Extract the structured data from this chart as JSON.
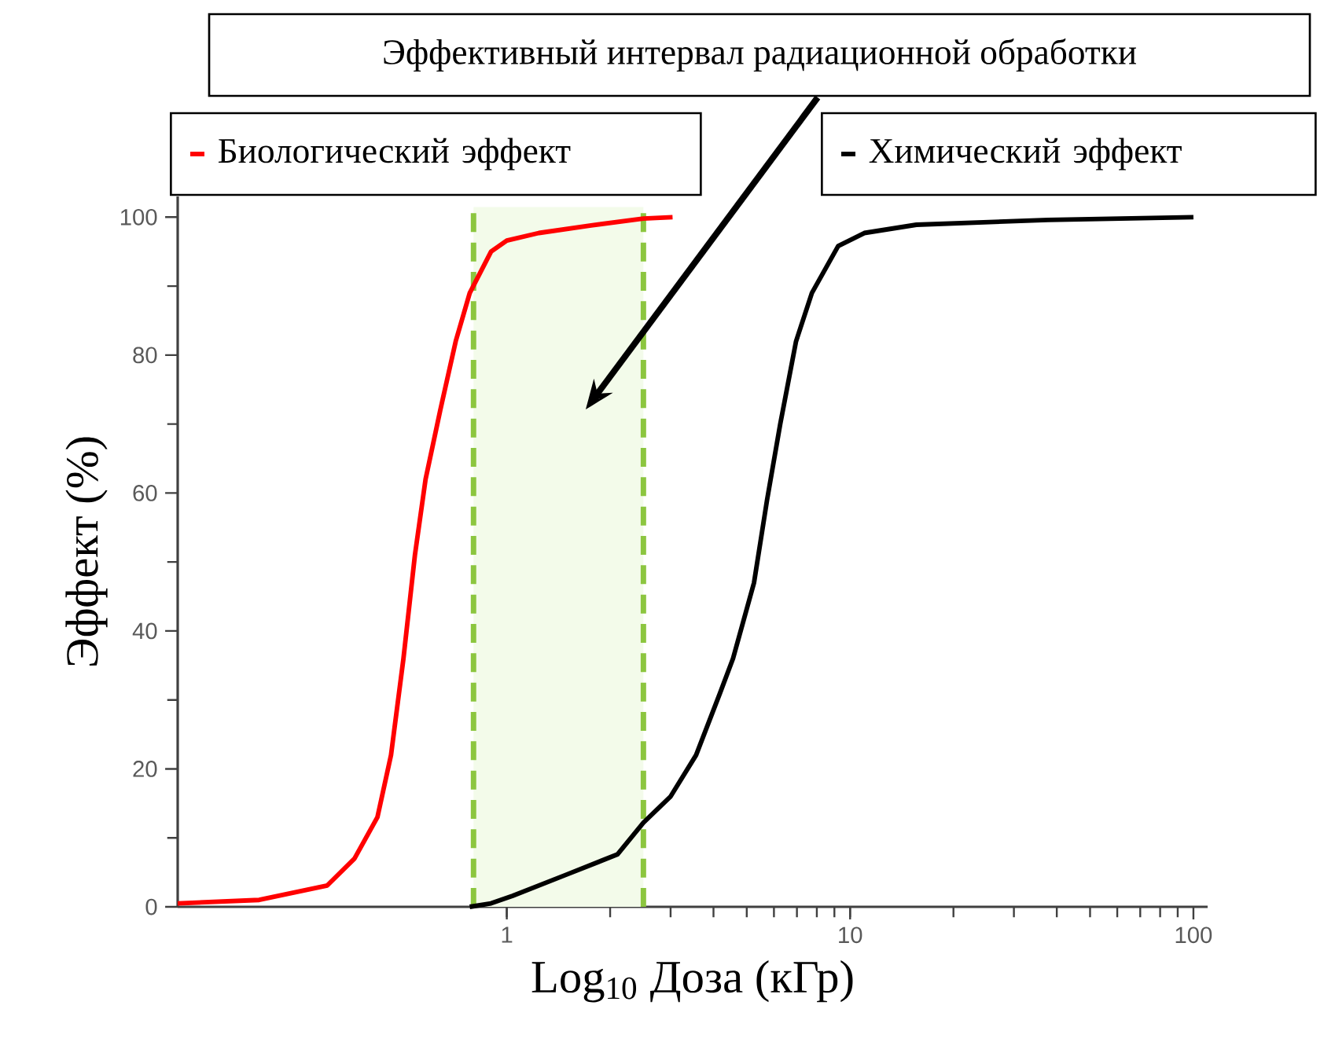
{
  "chart_data": {
    "type": "line",
    "xlabel": "Log$_{10}$ Доза (кГр)",
    "ylabel": "Эффект (%)",
    "log": "x",
    "xlim": [
      0.11,
      110
    ],
    "xticks": [
      1,
      10,
      100
    ],
    "ylim": [
      0,
      103
    ],
    "yticks": [
      0,
      20,
      40,
      60,
      80,
      100
    ],
    "grid": false,
    "legend": "top",
    "marker": "none",
    "line_style": "solid",
    "annotations": [
      "Эффективный интервал радиационной обработки"
    ],
    "bands": [
      {
        "axis": "x",
        "from": 0.8,
        "to": 2.5,
        "color": "#f3fbea"
      }
    ],
    "ref_lines": [
      {
        "axis": "x",
        "value": 0.8,
        "color": "#8cc63f",
        "line_style": "dashed"
      },
      {
        "axis": "x",
        "value": 2.5,
        "color": "#8cc63f",
        "line_style": "dashed"
      }
    ],
    "series": [
      {
        "name": "Биологический эффект",
        "color": "#ff0000",
        "x": [
          0.11,
          0.19,
          0.3,
          0.36,
          0.42,
          0.46,
          0.5,
          0.54,
          0.58,
          0.64,
          0.71,
          0.78,
          0.9,
          1.0,
          1.24,
          1.76,
          2.5,
          3.04
        ],
        "values": [
          0.5,
          1.0,
          3.1,
          7,
          13,
          22,
          36,
          51,
          62,
          72,
          82,
          89,
          95,
          96.6,
          97.7,
          98.8,
          99.8,
          100
        ]
      },
      {
        "name": "Химический эффект",
        "color": "#000000",
        "x": [
          0.78,
          0.9,
          1.04,
          1.48,
          2.1,
          2.5,
          3.0,
          3.56,
          4.18,
          4.56,
          5.25,
          5.73,
          6.26,
          6.96,
          7.74,
          9.23,
          11,
          15.6,
          37.7,
          100
        ],
        "values": [
          0,
          0.5,
          1.6,
          4.6,
          7.6,
          12.2,
          16,
          22,
          31,
          36,
          47,
          59,
          70,
          82,
          89,
          95.8,
          97.7,
          98.9,
          99.6,
          100
        ]
      }
    ]
  }
}
